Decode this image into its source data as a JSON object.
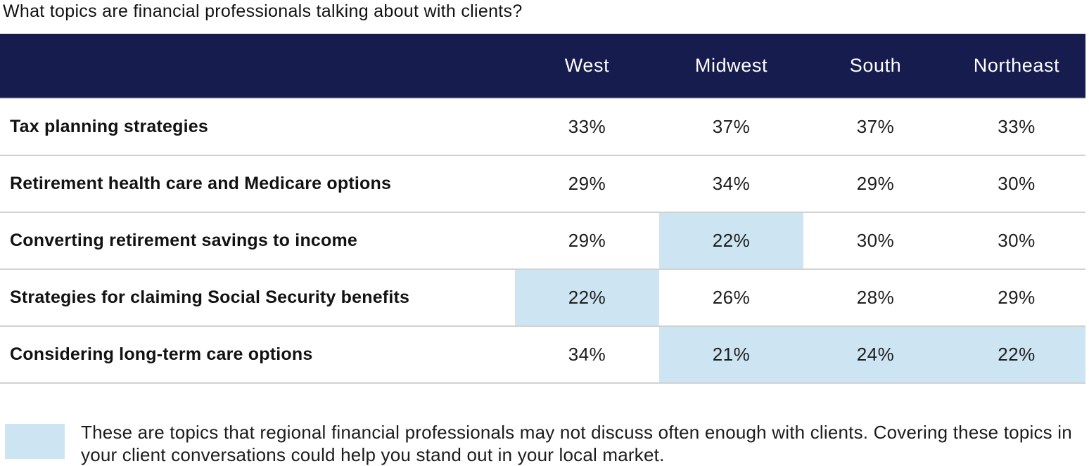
{
  "title": "What topics are financial professionals talking about with clients?",
  "colors": {
    "header_bg": "#171C4E",
    "header_text": "#FFFFFF",
    "highlight": "#CDE4F2",
    "divider": "#D2D2D2",
    "text": "#1A1A1A"
  },
  "table": {
    "columns": [
      "West",
      "Midwest",
      "South",
      "Northeast"
    ],
    "rows": [
      {
        "label": "Tax planning strategies",
        "values": [
          "33%",
          "37%",
          "37%",
          "33%"
        ],
        "highlighted": [
          false,
          false,
          false,
          false
        ]
      },
      {
        "label": "Retirement health care and Medicare options",
        "values": [
          "29%",
          "34%",
          "29%",
          "30%"
        ],
        "highlighted": [
          false,
          false,
          false,
          false
        ]
      },
      {
        "label": "Converting retirement savings to income",
        "values": [
          "29%",
          "22%",
          "30%",
          "30%"
        ],
        "highlighted": [
          false,
          true,
          false,
          false
        ]
      },
      {
        "label": "Strategies for claiming Social Security benefits",
        "values": [
          "22%",
          "26%",
          "28%",
          "29%"
        ],
        "highlighted": [
          true,
          false,
          false,
          false
        ]
      },
      {
        "label": "Considering long-term care options",
        "values": [
          "34%",
          "21%",
          "24%",
          "22%"
        ],
        "highlighted": [
          false,
          true,
          true,
          true
        ]
      }
    ]
  },
  "legend": {
    "swatch_color": "#CDE4F2",
    "text": "These are topics that regional financial professionals may not discuss often enough with clients. Covering these topics in your client conversations could help you stand out in your local market."
  },
  "chart_data": {
    "type": "table",
    "title": "What topics are financial professionals talking about with clients?",
    "categories": [
      "West",
      "Midwest",
      "South",
      "Northeast"
    ],
    "series": [
      {
        "name": "Tax planning strategies",
        "values": [
          33,
          37,
          37,
          33
        ]
      },
      {
        "name": "Retirement health care and Medicare options",
        "values": [
          29,
          34,
          29,
          30
        ]
      },
      {
        "name": "Converting retirement savings to income",
        "values": [
          29,
          22,
          30,
          30
        ]
      },
      {
        "name": "Strategies for claiming Social Security benefits",
        "values": [
          22,
          26,
          28,
          29
        ]
      },
      {
        "name": "Considering long-term care options",
        "values": [
          34,
          21,
          24,
          22
        ]
      }
    ],
    "highlighted_cells": [
      {
        "row": "Converting retirement savings to income",
        "column": "Midwest",
        "value": 22
      },
      {
        "row": "Strategies for claiming Social Security benefits",
        "column": "West",
        "value": 22
      },
      {
        "row": "Considering long-term care options",
        "column": "Midwest",
        "value": 21
      },
      {
        "row": "Considering long-term care options",
        "column": "South",
        "value": 24
      },
      {
        "row": "Considering long-term care options",
        "column": "Northeast",
        "value": 22
      }
    ],
    "legend_note": "Highlighted cells = topics regional financial professionals may not discuss often enough with clients.",
    "layout": {
      "header_position": "top",
      "values_unit": "percent",
      "grid": "horizontal-dividers"
    }
  }
}
